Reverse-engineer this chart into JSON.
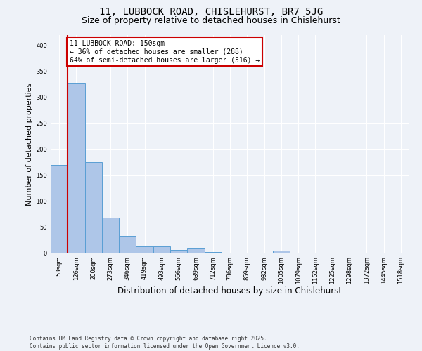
{
  "title_line1": "11, LUBBOCK ROAD, CHISLEHURST, BR7 5JG",
  "title_line2": "Size of property relative to detached houses in Chislehurst",
  "xlabel": "Distribution of detached houses by size in Chislehurst",
  "ylabel": "Number of detached properties",
  "bar_labels": [
    "53sqm",
    "126sqm",
    "200sqm",
    "273sqm",
    "346sqm",
    "419sqm",
    "493sqm",
    "566sqm",
    "639sqm",
    "712sqm",
    "786sqm",
    "859sqm",
    "932sqm",
    "1005sqm",
    "1079sqm",
    "1152sqm",
    "1225sqm",
    "1298sqm",
    "1372sqm",
    "1445sqm",
    "1518sqm"
  ],
  "bar_values": [
    170,
    328,
    175,
    68,
    33,
    12,
    12,
    5,
    10,
    2,
    0,
    0,
    0,
    4,
    0,
    0,
    0,
    0,
    0,
    0,
    0
  ],
  "bar_color": "#aec6e8",
  "bar_edgecolor": "#5a9fd4",
  "vline_x_idx": 1,
  "annotation_text": "11 LUBBOCK ROAD: 150sqm\n← 36% of detached houses are smaller (288)\n64% of semi-detached houses are larger (516) →",
  "annotation_box_color": "#ffffff",
  "annotation_box_edgecolor": "#cc0000",
  "vline_color": "#cc0000",
  "footer_text": "Contains HM Land Registry data © Crown copyright and database right 2025.\nContains public sector information licensed under the Open Government Licence v3.0.",
  "ylim": [
    0,
    420
  ],
  "yticks": [
    0,
    50,
    100,
    150,
    200,
    250,
    300,
    350,
    400
  ],
  "background_color": "#eef2f8",
  "grid_color": "#ffffff",
  "title_fontsize": 10,
  "subtitle_fontsize": 9,
  "xlabel_fontsize": 8.5,
  "ylabel_fontsize": 8
}
